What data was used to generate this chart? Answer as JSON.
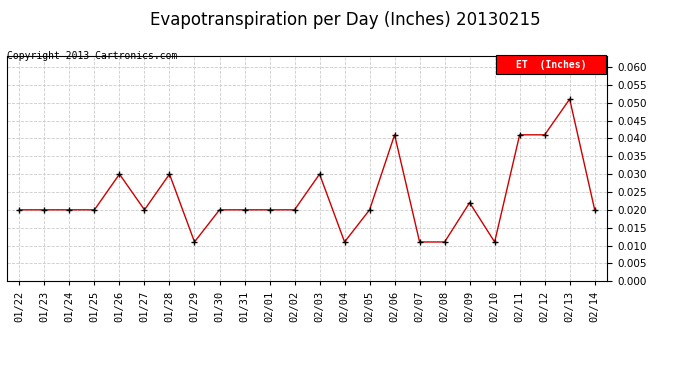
{
  "title": "Evapotranspiration per Day (Inches) 20130215",
  "copyright_text": "Copyright 2013 Cartronics.com",
  "legend_label": "ET  (Inches)",
  "legend_bg": "#ff0000",
  "legend_text_color": "#ffffff",
  "dates": [
    "01/22",
    "01/23",
    "01/24",
    "01/25",
    "01/26",
    "01/27",
    "01/28",
    "01/29",
    "01/30",
    "01/31",
    "02/01",
    "02/02",
    "02/03",
    "02/04",
    "02/05",
    "02/06",
    "02/07",
    "02/08",
    "02/09",
    "02/10",
    "02/11",
    "02/12",
    "02/13",
    "02/14"
  ],
  "values": [
    0.02,
    0.02,
    0.02,
    0.02,
    0.03,
    0.02,
    0.03,
    0.011,
    0.02,
    0.02,
    0.02,
    0.02,
    0.03,
    0.011,
    0.02,
    0.041,
    0.011,
    0.011,
    0.022,
    0.011,
    0.041,
    0.041,
    0.051,
    0.02
  ],
  "ylim": [
    0.0,
    0.063
  ],
  "yticks": [
    0.0,
    0.005,
    0.01,
    0.015,
    0.02,
    0.025,
    0.03,
    0.035,
    0.04,
    0.045,
    0.05,
    0.055,
    0.06
  ],
  "line_color": "#cc0000",
  "marker_color": "#000000",
  "bg_color": "#ffffff",
  "grid_color": "#cccccc",
  "title_fontsize": 12,
  "tick_fontsize": 7.5,
  "copyright_fontsize": 7
}
